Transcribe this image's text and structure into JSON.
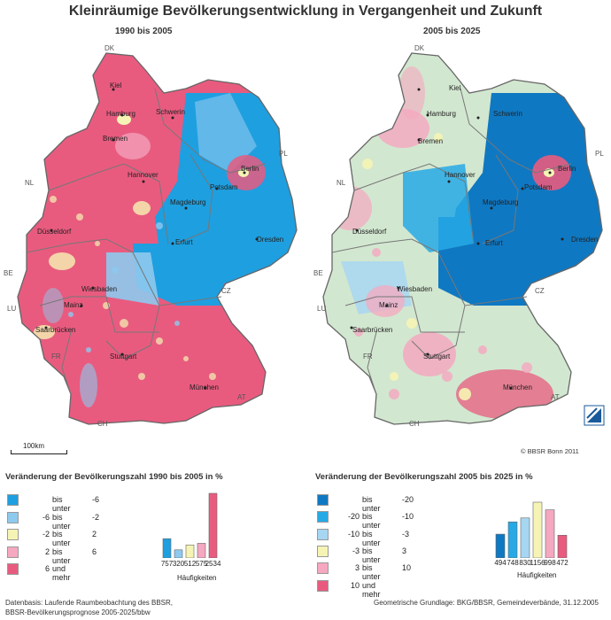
{
  "title": "Kleinräumige Bevölkerungsentwicklung in Vergangenheit und Zukunft",
  "panels": {
    "left_title": "1990 bis 2005",
    "right_title": "2005 bis 2025"
  },
  "cities": [
    "Kiel",
    "Hamburg",
    "Schwerin",
    "Bremen",
    "Berlin",
    "Hannover",
    "Potsdam",
    "Magdeburg",
    "Düsseldorf",
    "Erfurt",
    "Dresden",
    "Wiesbaden",
    "Mainz",
    "Saarbrücken",
    "Stuttgart",
    "München"
  ],
  "countries": [
    "DK",
    "PL",
    "NL",
    "BE",
    "LU",
    "FR",
    "CZ",
    "AT",
    "CH"
  ],
  "scale_label": "100km",
  "copyright": "© BBSR Bonn 2011",
  "legend_left": {
    "title": "Veränderung der Bevölkerungszahl 1990 bis 2005 in %",
    "classes": [
      {
        "lo": "",
        "mid": "bis unter",
        "hi": "-6",
        "color": "#1e9fe0"
      },
      {
        "lo": "-6",
        "mid": "bis unter",
        "hi": "-2",
        "color": "#8ec9ee"
      },
      {
        "lo": "-2",
        "mid": "bis unter",
        "hi": "2",
        "color": "#f6f4b4"
      },
      {
        "lo": "2",
        "mid": "bis unter",
        "hi": "6",
        "color": "#f5a8c0"
      },
      {
        "lo": "6",
        "mid": "und mehr",
        "hi": "",
        "color": "#e85b7f"
      }
    ],
    "frequencies": [
      757,
      320,
      512,
      575,
      2534
    ],
    "frequencies_labels": [
      "757",
      "320",
      "512",
      "575",
      "2534"
    ],
    "frequencies_caption": "Häufigkeiten"
  },
  "legend_right": {
    "title": "Veränderung der Bevölkerungszahl 2005 bis 2025 in %",
    "classes": [
      {
        "lo": "",
        "mid": "bis unter",
        "hi": "-20",
        "color": "#0f78c2"
      },
      {
        "lo": "-20",
        "mid": "bis unter",
        "hi": "-10",
        "color": "#27a9e6"
      },
      {
        "lo": "-10",
        "mid": "bis unter",
        "hi": "-3",
        "color": "#a6d6f2"
      },
      {
        "lo": "-3",
        "mid": "bis unter",
        "hi": "3",
        "color": "#f6f4b4"
      },
      {
        "lo": "3",
        "mid": "bis unter",
        "hi": "10",
        "color": "#f5a8c0"
      },
      {
        "lo": "10",
        "mid": "und mehr",
        "hi": "",
        "color": "#e85b7f"
      }
    ],
    "frequencies": [
      494,
      748,
      830,
      1156,
      998,
      472
    ],
    "frequencies_labels": [
      "494",
      "748",
      "830",
      "1156",
      "998",
      "472"
    ],
    "frequencies_caption": "Häufigkeiten"
  },
  "footer": {
    "left_line1": "Datenbasis: Laufende Raumbeobachtung des BBSR,",
    "left_line2": "BBSR-Bevölkerungsprognose 2005-2025/bbw",
    "right": "Geometrische Grundlage: BKG/BBSR, Gemeindeverbände, 31.12.2005"
  }
}
